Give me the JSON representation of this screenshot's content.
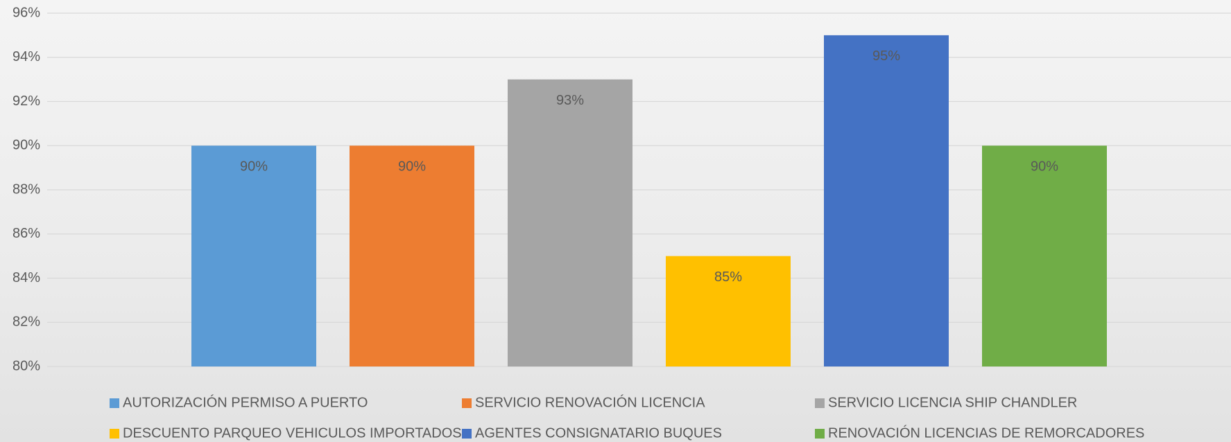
{
  "chart_data": {
    "type": "bar",
    "series": [
      {
        "name": "AUTORIZACIÓN PERMISO A PUERTO",
        "color": "#5b9bd5",
        "values": [
          90
        ],
        "value_labels": [
          "90%"
        ]
      },
      {
        "name": "SERVICIO RENOVACIÓN LICENCIA",
        "color": "#ed7d31",
        "values": [
          90
        ],
        "value_labels": [
          "90%"
        ]
      },
      {
        "name": "SERVICIO LICENCIA SHIP CHANDLER",
        "color": "#a5a5a5",
        "values": [
          93
        ],
        "value_labels": [
          "93%"
        ]
      },
      {
        "name": "DESCUENTO PARQUEO VEHICULOS IMPORTADOS",
        "color": "#ffc000",
        "values": [
          85
        ],
        "value_labels": [
          "85%"
        ]
      },
      {
        "name": "AGENTES CONSIGNATARIO BUQUES",
        "color": "#4472c4",
        "values": [
          95
        ],
        "value_labels": [
          "95%"
        ]
      },
      {
        "name": "RENOVACIÓN LICENCIAS DE REMORCADORES",
        "color": "#70ad47",
        "values": [
          90
        ],
        "value_labels": [
          "90%"
        ]
      }
    ],
    "ylim": [
      80,
      96
    ],
    "yticks": [
      {
        "value": 80,
        "label": "80%"
      },
      {
        "value": 82,
        "label": "82%"
      },
      {
        "value": 84,
        "label": "84%"
      },
      {
        "value": 86,
        "label": "86%"
      },
      {
        "value": 88,
        "label": "88%"
      },
      {
        "value": 90,
        "label": "90%"
      },
      {
        "value": 92,
        "label": "92%"
      },
      {
        "value": 94,
        "label": "94%"
      },
      {
        "value": 96,
        "label": "96%"
      }
    ],
    "grid": true
  }
}
